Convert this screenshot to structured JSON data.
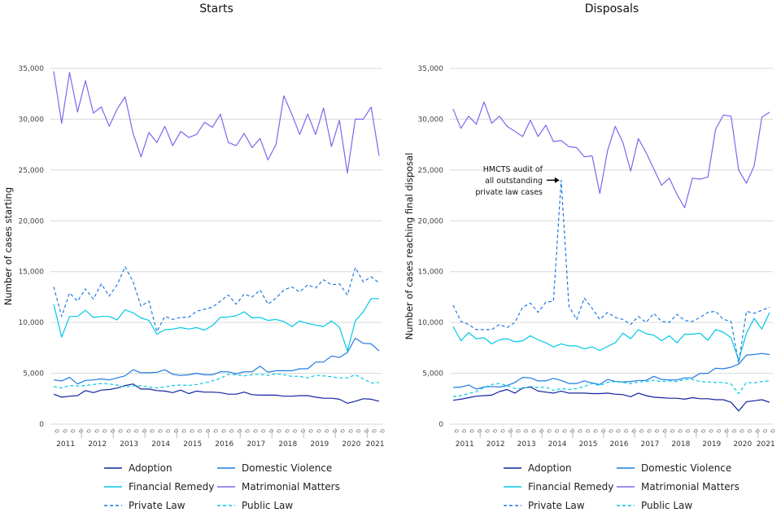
{
  "chart_data": [
    {
      "type": "line",
      "title": "Starts",
      "xlabel": "",
      "ylabel": "Number of cases starting",
      "ylim": [
        0,
        35000
      ],
      "yticks": [
        "0",
        "5,000",
        "10,000",
        "15,000",
        "20,000",
        "25,000",
        "30,000",
        "35,000"
      ],
      "quarter_tick_label": "Q",
      "years": [
        "2011",
        "2012",
        "2013",
        "2014",
        "2015",
        "2016",
        "2017",
        "2018",
        "2019",
        "2020",
        "2021"
      ],
      "x_start": "2011 Q1",
      "grid": "horizontal",
      "series": [
        {
          "name": "Adoption",
          "color": "#12239e",
          "dash": "solid",
          "values": [
            2950,
            2650,
            2750,
            2800,
            3300,
            3100,
            3350,
            3400,
            3550,
            3800,
            3950,
            3450,
            3450,
            3300,
            3250,
            3100,
            3350,
            3000,
            3250,
            3150,
            3150,
            3100,
            2950,
            2950,
            3150,
            2900,
            2850,
            2850,
            2850,
            2750,
            2750,
            2800,
            2800,
            2650,
            2550,
            2550,
            2450,
            2050,
            2250,
            2500,
            2450,
            2250
          ]
        },
        {
          "name": "Domestic Violence",
          "color": "#1f7ae0",
          "dash": "solid",
          "values": [
            4350,
            4250,
            4600,
            3950,
            4300,
            4350,
            4450,
            4350,
            4550,
            4750,
            5350,
            5050,
            5050,
            5100,
            5350,
            4900,
            4800,
            4850,
            5000,
            4850,
            4850,
            5150,
            5150,
            4950,
            5150,
            5150,
            5700,
            5100,
            5250,
            5250,
            5250,
            5450,
            5450,
            6100,
            6100,
            6700,
            6550,
            7050,
            8450,
            7950,
            7900,
            7200
          ]
        },
        {
          "name": "Financial Remedy",
          "color": "#00c8e6",
          "dash": "solid",
          "values": [
            11800,
            8550,
            10600,
            10600,
            11200,
            10500,
            10600,
            10600,
            10250,
            11250,
            10950,
            10450,
            10200,
            8850,
            9300,
            9350,
            9500,
            9350,
            9500,
            9250,
            9700,
            10500,
            10550,
            10650,
            11050,
            10450,
            10500,
            10200,
            10300,
            10100,
            9600,
            10150,
            9900,
            9750,
            9600,
            10150,
            9550,
            7200,
            10150,
            11050,
            12350,
            12350
          ]
        },
        {
          "name": "Matrimonial Matters",
          "color": "#7b68ee",
          "dash": "solid",
          "values": [
            34700,
            29600,
            34600,
            30700,
            33800,
            30600,
            31200,
            29300,
            31000,
            32200,
            28600,
            26300,
            28700,
            27700,
            29300,
            27400,
            28800,
            28200,
            28500,
            29700,
            29200,
            30500,
            27700,
            27400,
            28600,
            27200,
            28100,
            26000,
            27500,
            32300,
            30500,
            28500,
            30500,
            28500,
            31100,
            27300,
            29900,
            24700,
            30000,
            30000,
            31200,
            26400
          ]
        },
        {
          "name": "Private Law",
          "color": "#1f7ae0",
          "dash": "dashed",
          "values": [
            13500,
            10600,
            12900,
            12100,
            13300,
            12300,
            13800,
            12600,
            13700,
            15500,
            14000,
            11600,
            12100,
            9100,
            10600,
            10300,
            10500,
            10500,
            11100,
            11300,
            11500,
            12100,
            12700,
            11800,
            12800,
            12500,
            13200,
            11800,
            12400,
            13200,
            13500,
            13000,
            13700,
            13400,
            14200,
            13700,
            13800,
            12700,
            15400,
            14000,
            14500,
            13900
          ]
        },
        {
          "name": "Public Law",
          "color": "#00c8e6",
          "dash": "dashed",
          "values": [
            3700,
            3550,
            3800,
            3750,
            3800,
            3900,
            4000,
            3950,
            3850,
            3650,
            3750,
            3800,
            3650,
            3550,
            3650,
            3800,
            3850,
            3800,
            3900,
            4050,
            4250,
            4500,
            4900,
            4850,
            4750,
            4850,
            4900,
            4800,
            4950,
            4850,
            4700,
            4700,
            4550,
            4800,
            4750,
            4650,
            4550,
            4550,
            4850,
            4450,
            4050,
            4100
          ]
        }
      ]
    },
    {
      "type": "line",
      "title": "Disposals",
      "xlabel": "",
      "ylabel": "Number of cases reaching final disposal",
      "ylim": [
        0,
        35000
      ],
      "yticks": [
        "0",
        "5,000",
        "10,000",
        "15,000",
        "20,000",
        "25,000",
        "30,000",
        "35,000"
      ],
      "quarter_tick_label": "Q",
      "years": [
        "2011",
        "2012",
        "2013",
        "2014",
        "2015",
        "2016",
        "2017",
        "2018",
        "2019",
        "2020",
        "2021"
      ],
      "x_start": "2011 Q1",
      "grid": "horizontal",
      "annotation": {
        "lines": [
          "HMCTS audit of",
          "all outstanding",
          "private law cases"
        ],
        "series": "Private Law",
        "x": "2014 Q1",
        "value": 24000
      },
      "series": [
        {
          "name": "Adoption",
          "color": "#12239e",
          "dash": "solid",
          "values": [
            2350,
            2450,
            2600,
            2750,
            2800,
            2850,
            3200,
            3400,
            3050,
            3550,
            3650,
            3250,
            3150,
            3050,
            3250,
            3050,
            3050,
            3050,
            3000,
            3000,
            3050,
            2950,
            2900,
            2700,
            3050,
            2800,
            2650,
            2600,
            2550,
            2550,
            2450,
            2600,
            2500,
            2500,
            2400,
            2400,
            2150,
            1300,
            2200,
            2300,
            2400,
            2150
          ]
        },
        {
          "name": "Domestic Violence",
          "color": "#1f7ae0",
          "dash": "solid",
          "values": [
            3600,
            3650,
            3850,
            3450,
            3650,
            3700,
            3650,
            3800,
            4100,
            4600,
            4550,
            4250,
            4250,
            4500,
            4300,
            4000,
            4000,
            4250,
            4050,
            3900,
            4400,
            4200,
            4150,
            4200,
            4300,
            4300,
            4700,
            4400,
            4350,
            4350,
            4550,
            4550,
            5000,
            5000,
            5500,
            5450,
            5600,
            5900,
            6800,
            6850,
            6950,
            6850
          ]
        },
        {
          "name": "Financial Remedy",
          "color": "#00c8e6",
          "dash": "solid",
          "values": [
            9600,
            8200,
            9000,
            8400,
            8500,
            7900,
            8300,
            8400,
            8100,
            8200,
            8700,
            8300,
            8000,
            7600,
            7900,
            7700,
            7700,
            7400,
            7600,
            7250,
            7650,
            8000,
            8950,
            8400,
            9300,
            8900,
            8750,
            8200,
            8700,
            8000,
            8850,
            8850,
            8950,
            8250,
            9300,
            9050,
            8500,
            6300,
            8950,
            10400,
            9350,
            11000
          ]
        },
        {
          "name": "Matrimonial Matters",
          "color": "#7b68ee",
          "dash": "solid",
          "values": [
            31000,
            29100,
            30300,
            29500,
            31700,
            29600,
            30300,
            29300,
            28800,
            28300,
            29900,
            28300,
            29400,
            27800,
            27900,
            27300,
            27200,
            26300,
            26400,
            22700,
            26900,
            29300,
            27700,
            24900,
            28100,
            26700,
            25100,
            23500,
            24200,
            22600,
            21300,
            24200,
            24100,
            24300,
            29000,
            30400,
            30300,
            25000,
            23700,
            25400,
            30200,
            30700
          ]
        },
        {
          "name": "Private Law",
          "color": "#1f7ae0",
          "dash": "dashed",
          "values": [
            11700,
            10100,
            9800,
            9300,
            9300,
            9300,
            9800,
            9500,
            10000,
            11500,
            11900,
            11000,
            12000,
            12100,
            24000,
            11600,
            10300,
            12400,
            11400,
            10300,
            11000,
            10500,
            10300,
            9800,
            10600,
            10000,
            10900,
            10100,
            10000,
            10800,
            10200,
            10100,
            10500,
            11000,
            11100,
            10300,
            10100,
            6000,
            11100,
            10900,
            11200,
            11500
          ]
        },
        {
          "name": "Public Law",
          "color": "#00c8e6",
          "dash": "dashed",
          "values": [
            2700,
            2800,
            3000,
            3200,
            3600,
            3900,
            4000,
            3800,
            3500,
            3500,
            3700,
            3600,
            3650,
            3300,
            3500,
            3400,
            3500,
            3700,
            4000,
            3800,
            4100,
            4200,
            4100,
            4000,
            4150,
            4200,
            4300,
            4200,
            4250,
            4200,
            4400,
            4400,
            4200,
            4150,
            4100,
            4100,
            3950,
            3000,
            4100,
            4050,
            4200,
            4250
          ]
        }
      ]
    }
  ]
}
